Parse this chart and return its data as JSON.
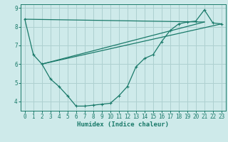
{
  "xlabel": "Humidex (Indice chaleur)",
  "background_color": "#ceeaea",
  "grid_color": "#aed0d0",
  "line_color": "#1a7a6a",
  "xlim": [
    -0.5,
    23.5
  ],
  "ylim": [
    3.5,
    9.2
  ],
  "yticks": [
    4,
    5,
    6,
    7,
    8,
    9
  ],
  "xticks": [
    0,
    1,
    2,
    3,
    4,
    5,
    6,
    7,
    8,
    9,
    10,
    11,
    12,
    13,
    14,
    15,
    16,
    17,
    18,
    19,
    20,
    21,
    22,
    23
  ],
  "line1_x": [
    0,
    1,
    2,
    3,
    4,
    5,
    6,
    7,
    8,
    9,
    10,
    11,
    12,
    13,
    14,
    15,
    16,
    17,
    18,
    19,
    20,
    21,
    22,
    23
  ],
  "line1_y": [
    8.4,
    6.5,
    6.0,
    5.2,
    4.8,
    4.3,
    3.75,
    3.75,
    3.8,
    3.85,
    3.9,
    4.3,
    4.8,
    5.85,
    6.3,
    6.5,
    7.2,
    7.8,
    8.15,
    8.25,
    8.3,
    8.9,
    8.2,
    8.15
  ],
  "line2_x": [
    0,
    21
  ],
  "line2_y": [
    8.4,
    8.25
  ],
  "line3_x": [
    2,
    21
  ],
  "line3_y": [
    6.0,
    8.25
  ],
  "line4_x": [
    2,
    23
  ],
  "line4_y": [
    6.0,
    8.15
  ]
}
